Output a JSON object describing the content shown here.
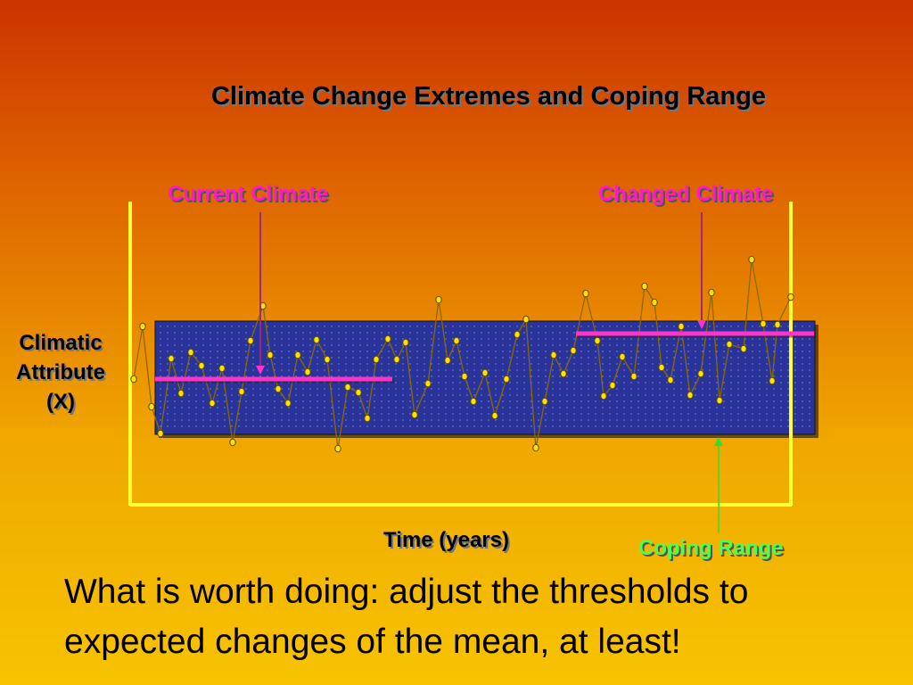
{
  "title": "Climate Change Extremes and Coping Range",
  "labels": {
    "current_climate": "Current Climate",
    "changed_climate": "Changed Climate",
    "y_axis": "Climatic Attribute (X)",
    "x_axis": "Time (years)",
    "coping_range": "Coping Range"
  },
  "bottom_text": "What is worth doing: adjust the thresholds to expected changes of the mean, at least!",
  "colors": {
    "axis": "#FFFF33",
    "coping_band": "#2A3399",
    "mean_line": "#FF33CC",
    "label_pink": "#FF1AC6",
    "label_green": "#4CFF4C",
    "series_line": "#8A6A00",
    "marker": "#FFE000"
  }
}
